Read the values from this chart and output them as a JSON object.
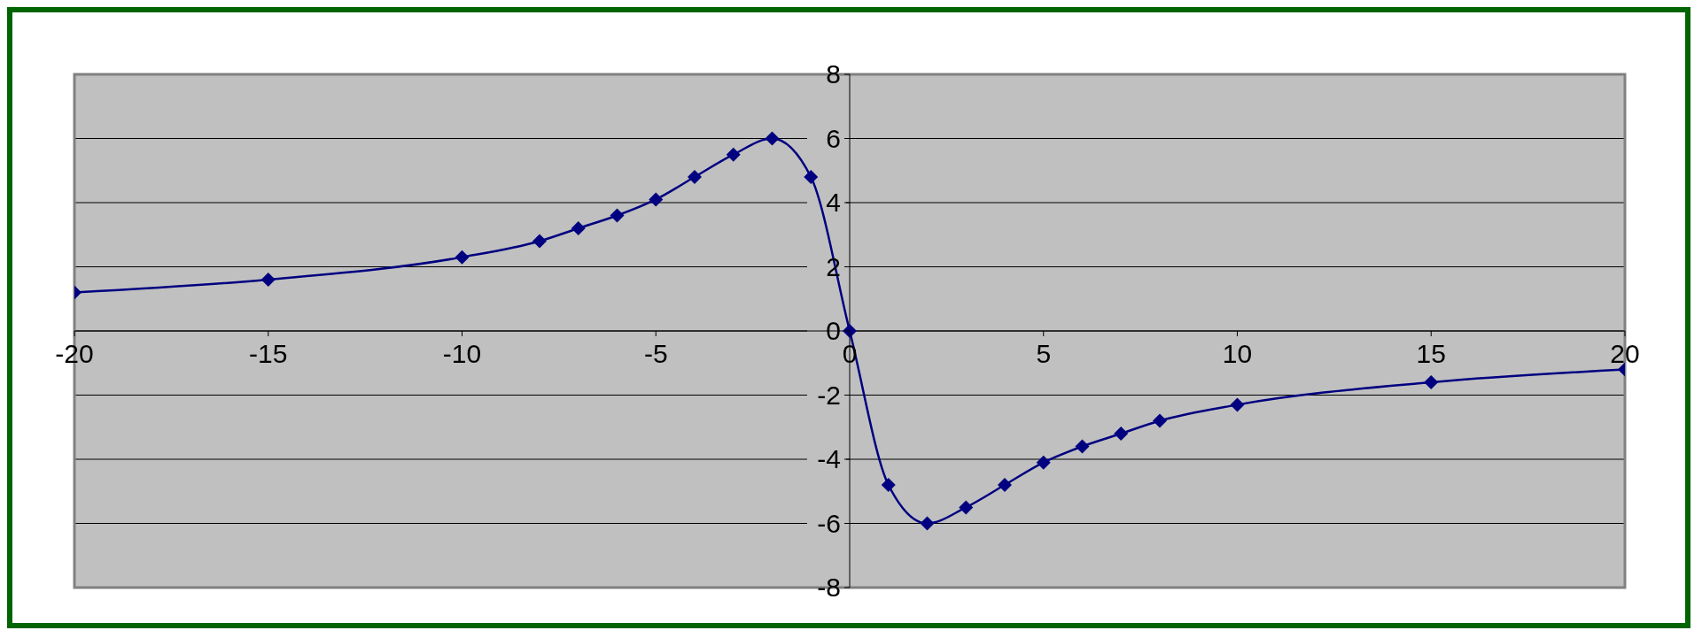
{
  "chart_data": {
    "type": "line",
    "x": [
      -20,
      -15,
      -10,
      -8,
      -7,
      -6,
      -5,
      -4,
      -3,
      -2,
      -1,
      0,
      1,
      2,
      3,
      4,
      5,
      6,
      7,
      8,
      10,
      15,
      20
    ],
    "series": [
      {
        "color": "#000080",
        "values": [
          1.2,
          1.6,
          2.3,
          2.8,
          3.2,
          3.6,
          4.1,
          4.8,
          5.5,
          6.0,
          4.8,
          0,
          -4.8,
          -6.0,
          -5.5,
          -4.8,
          -4.1,
          -3.6,
          -3.2,
          -2.8,
          -2.3,
          -1.6,
          -1.2
        ]
      }
    ],
    "xlim": [
      -20,
      20
    ],
    "xticks": [
      -20,
      -15,
      -10,
      -5,
      0,
      5,
      10,
      15,
      20
    ],
    "ylim": [
      -8,
      8
    ],
    "yticks": [
      -8,
      -6,
      -4,
      -2,
      0,
      2,
      4,
      6,
      8
    ],
    "grid": "y",
    "marker": "diamond",
    "line_style": "solid",
    "legend": false
  }
}
